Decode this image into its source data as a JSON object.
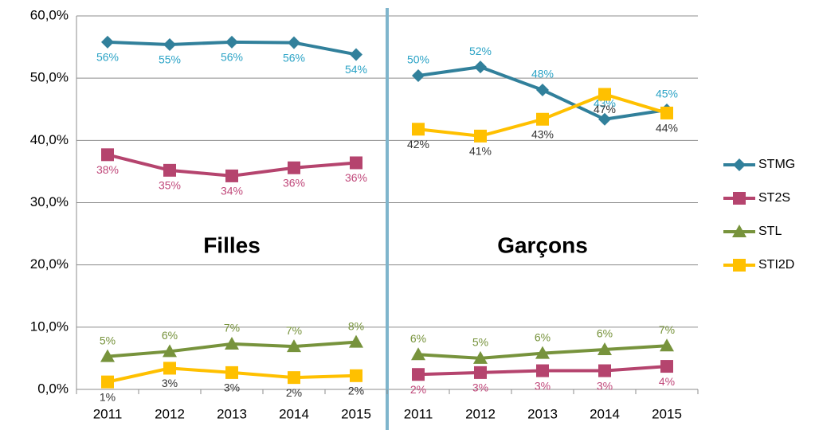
{
  "chart_data": {
    "type": "line",
    "categories": [
      "2011",
      "2012",
      "2013",
      "2014",
      "2015",
      "2011",
      "2012",
      "2013",
      "2014",
      "2015"
    ],
    "annotations": [
      "Filles",
      "Garçons"
    ],
    "ylim": [
      0,
      60
    ],
    "yticks": [
      {
        "value": 0,
        "label": "0,0%"
      },
      {
        "value": 10,
        "label": "10,0%"
      },
      {
        "value": 20,
        "label": "20,0%"
      },
      {
        "value": 30,
        "label": "30,0%"
      },
      {
        "value": 40,
        "label": "40,0%"
      },
      {
        "value": 50,
        "label": "50,0%"
      },
      {
        "value": 60,
        "label": "60,0%"
      }
    ],
    "grid": true,
    "legend": "right",
    "series": [
      {
        "name": "STMG",
        "color": "#31809b",
        "label_color": "#2ba3c6",
        "marker": "diamond",
        "values": [
          55.8,
          55.4,
          55.8,
          55.7,
          53.8,
          50.4,
          51.8,
          48.1,
          43.4,
          44.9
        ],
        "value_labels": [
          "56%",
          "55%",
          "56%",
          "56%",
          "54%",
          "50%",
          "52%",
          "48%",
          "43%",
          "45%"
        ]
      },
      {
        "name": "ST2S",
        "color": "#b5446e",
        "label_color": "#c0487a",
        "marker": "square",
        "values": [
          37.7,
          35.2,
          34.3,
          35.6,
          36.4,
          2.4,
          2.7,
          3.0,
          3.0,
          3.7
        ],
        "value_labels": [
          "38%",
          "35%",
          "34%",
          "36%",
          "36%",
          "2%",
          "3%",
          "3%",
          "3%",
          "4%"
        ]
      },
      {
        "name": "STL",
        "color": "#77933c",
        "label_color": "#77933c",
        "marker": "triangle",
        "values": [
          5.3,
          6.1,
          7.3,
          6.9,
          7.6,
          5.6,
          5.0,
          5.8,
          6.4,
          7.0
        ],
        "value_labels": [
          "5%",
          "6%",
          "7%",
          "7%",
          "8%",
          "6%",
          "5%",
          "6%",
          "6%",
          "7%"
        ]
      },
      {
        "name": "STI2D",
        "color": "#ffc000",
        "label_color": "#333333",
        "marker": "square",
        "values": [
          1.2,
          3.4,
          2.7,
          1.9,
          2.2,
          41.8,
          40.7,
          43.4,
          47.4,
          44.4
        ],
        "value_labels": [
          "1%",
          "3%",
          "3%",
          "2%",
          "2%",
          "42%",
          "41%",
          "43%",
          "47%",
          "44%"
        ]
      }
    ]
  }
}
